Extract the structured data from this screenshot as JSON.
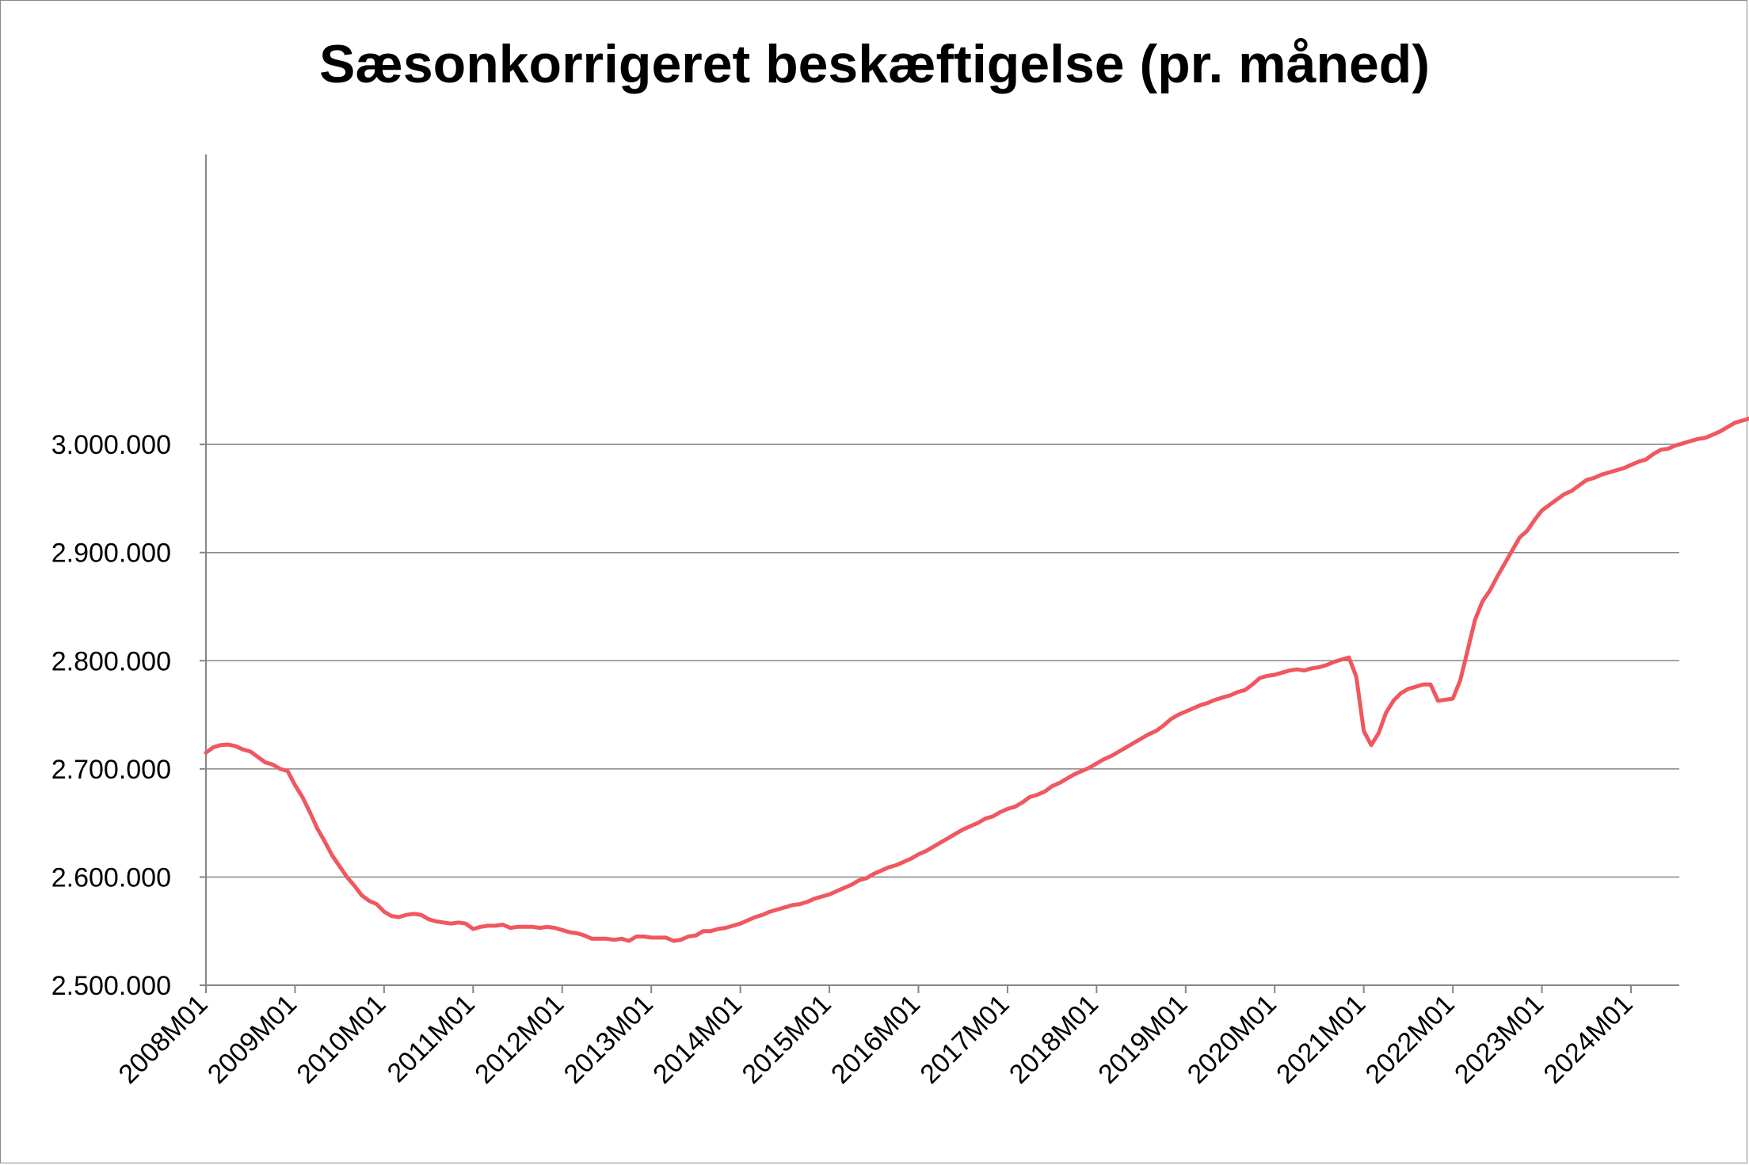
{
  "chart_data": {
    "type": "line",
    "title": "Sæsonkorrigeret beskæftigelse (pr. måned)",
    "xlabel": "",
    "ylabel": "",
    "ylim": [
      2500000,
      3050000
    ],
    "y_ticks": [
      "2.500.000",
      "2.600.000",
      "2.700.000",
      "2.800.000",
      "2.900.000",
      "3.000.000"
    ],
    "x_ticks": [
      "2008M01",
      "2009M01",
      "2010M01",
      "2011M01",
      "2012M01",
      "2013M01",
      "2014M01",
      "2015M01",
      "2016M01",
      "2017M01",
      "2018M01",
      "2019M01",
      "2020M01",
      "2021M01",
      "2022M01",
      "2023M01",
      "2024M01"
    ],
    "grid": "horizontal",
    "legend": "none",
    "line_color": "#f0575e",
    "series": [
      {
        "x_start": "2008M01",
        "frequency": "monthly",
        "values": [
          2715000,
          2720000,
          2722000,
          2722500,
          2721000,
          2718000,
          2716000,
          2711000,
          2706000,
          2704000,
          2700000,
          2698000,
          2685000,
          2674000,
          2660000,
          2645000,
          2633000,
          2620000,
          2610000,
          2600000,
          2592000,
          2583000,
          2578000,
          2575000,
          2568000,
          2564000,
          2563000,
          2565000,
          2566000,
          2565000,
          2561000,
          2559000,
          2558000,
          2557000,
          2558000,
          2557000,
          2552000,
          2554000,
          2555000,
          2555000,
          2556000,
          2553000,
          2554000,
          2554000,
          2554000,
          2553000,
          2554000,
          2553000,
          2551000,
          2549000,
          2548000,
          2546000,
          2543000,
          2543000,
          2543000,
          2542000,
          2543000,
          2541000,
          2545000,
          2545000,
          2544000,
          2544000,
          2544000,
          2541000,
          2542000,
          2545000,
          2546000,
          2550000,
          2550000,
          2552000,
          2553000,
          2555000,
          2557000,
          2560000,
          2563000,
          2565000,
          2568000,
          2570000,
          2572000,
          2574000,
          2575000,
          2577000,
          2580000,
          2582000,
          2584000,
          2587000,
          2590000,
          2593000,
          2597000,
          2599000,
          2603000,
          2606000,
          2609000,
          2611000,
          2614000,
          2617000,
          2621000,
          2624000,
          2628000,
          2632000,
          2636000,
          2640000,
          2644000,
          2647000,
          2650000,
          2654000,
          2656000,
          2660000,
          2663000,
          2665000,
          2669000,
          2674000,
          2676000,
          2679000,
          2684000,
          2687000,
          2691000,
          2695000,
          2698000,
          2701000,
          2705000,
          2709000,
          2712000,
          2716000,
          2720000,
          2724000,
          2728000,
          2732000,
          2735000,
          2740000,
          2746000,
          2750000,
          2753000,
          2756000,
          2759000,
          2761000,
          2764000,
          2766000,
          2768000,
          2771000,
          2773000,
          2778000,
          2784000,
          2786000,
          2787000,
          2789000,
          2791000,
          2792000,
          2791000,
          2793000,
          2794000,
          2796000,
          2799000,
          2801000,
          2803000,
          2785000,
          2735000,
          2722000,
          2733000,
          2752000,
          2763000,
          2770000,
          2774000,
          2776000,
          2778000,
          2778000,
          2763000,
          2764000,
          2765000,
          2782000,
          2810000,
          2838000,
          2855000,
          2865000,
          2878000,
          2890000,
          2902000,
          2914000,
          2920000,
          2930000,
          2939000,
          2944000,
          2949000,
          2954000,
          2957000,
          2962000,
          2967000,
          2969000,
          2972000,
          2974000,
          2976000,
          2978000,
          2981000,
          2984000,
          2986000,
          2991000,
          2995000,
          2996000,
          2999000,
          3001000,
          3003000,
          3005000,
          3006000,
          3009000,
          3012000,
          3016000,
          3020000,
          3022000,
          3024000,
          3025000
        ]
      }
    ]
  }
}
